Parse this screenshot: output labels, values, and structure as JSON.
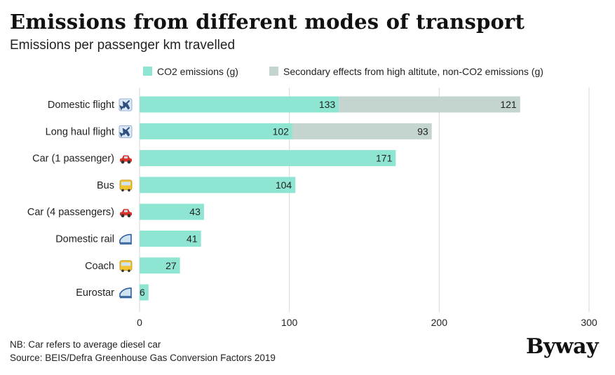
{
  "title": "Emissions from different modes of transport",
  "subtitle": "Emissions per passenger km travelled",
  "footnote_nb": "NB: Car refers to average diesel car",
  "footnote_source": "Source: BEIS/Defra Greenhouse Gas Conversion Factors 2019",
  "logo": "Byway",
  "colors": {
    "co2": "#8ee6d2",
    "secondary": "#c4d4cf",
    "grid": "#dddddd",
    "text": "#222222"
  },
  "chart_data": {
    "type": "bar",
    "orientation": "horizontal",
    "stacked": true,
    "categories": [
      "Domestic flight",
      "Long haul flight",
      "Car (1 passenger)",
      "Bus",
      "Car (4 passengers)",
      "Domestic rail",
      "Coach",
      "Eurostar"
    ],
    "category_icons": [
      "airplane-icon",
      "airplane-icon",
      "car-icon",
      "bus-icon",
      "car-icon",
      "train-icon",
      "bus-icon",
      "train-icon"
    ],
    "series": [
      {
        "name": "CO2 emissions (g)",
        "values": [
          133,
          102,
          171,
          104,
          43,
          41,
          27,
          6
        ]
      },
      {
        "name": "Secondary effects from high altitute, non-CO2 emissions (g)",
        "values": [
          121,
          93,
          null,
          null,
          null,
          null,
          null,
          null
        ]
      }
    ],
    "xlim": [
      0,
      300
    ],
    "xticks": [
      0,
      100,
      200,
      300
    ],
    "grid": true,
    "legend_position": "top"
  }
}
